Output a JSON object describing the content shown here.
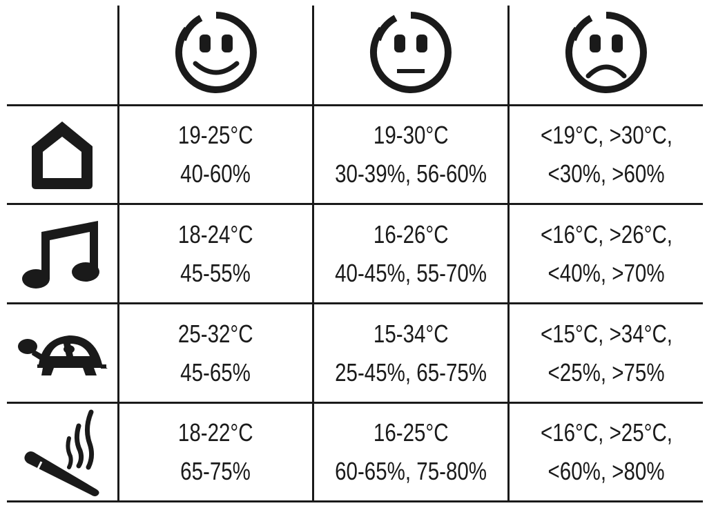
{
  "header": {
    "columns": [
      {
        "icon": "happy-face-icon"
      },
      {
        "icon": "neutral-face-icon"
      },
      {
        "icon": "sad-face-icon"
      }
    ]
  },
  "rows": [
    {
      "icon": "house-icon",
      "good": {
        "temp": "19-25°C",
        "humidity": "40-60%"
      },
      "ok": {
        "temp": "19-30°C",
        "humidity": "30-39%, 56-60%"
      },
      "bad": {
        "temp": "<19°C, >30°C,",
        "humidity": "<30%, >60%"
      }
    },
    {
      "icon": "music-note-icon",
      "good": {
        "temp": "18-24°C",
        "humidity": "45-55%"
      },
      "ok": {
        "temp": "16-26°C",
        "humidity": "40-45%, 55-70%"
      },
      "bad": {
        "temp": "<16°C, >26°C,",
        "humidity": "<40%, >70%"
      }
    },
    {
      "icon": "turtle-icon",
      "good": {
        "temp": "25-32°C",
        "humidity": "45-65%"
      },
      "ok": {
        "temp": "15-34°C",
        "humidity": "25-45%, 65-75%"
      },
      "bad": {
        "temp": "<15°C, >34°C,",
        "humidity": "<25%, >75%"
      }
    },
    {
      "icon": "cigar-icon",
      "good": {
        "temp": "18-22°C",
        "humidity": "65-75%"
      },
      "ok": {
        "temp": "16-25°C",
        "humidity": "60-65%, 75-80%"
      },
      "bad": {
        "temp": "<16°C, >25°C,",
        "humidity": "<60%, >80%"
      }
    }
  ]
}
